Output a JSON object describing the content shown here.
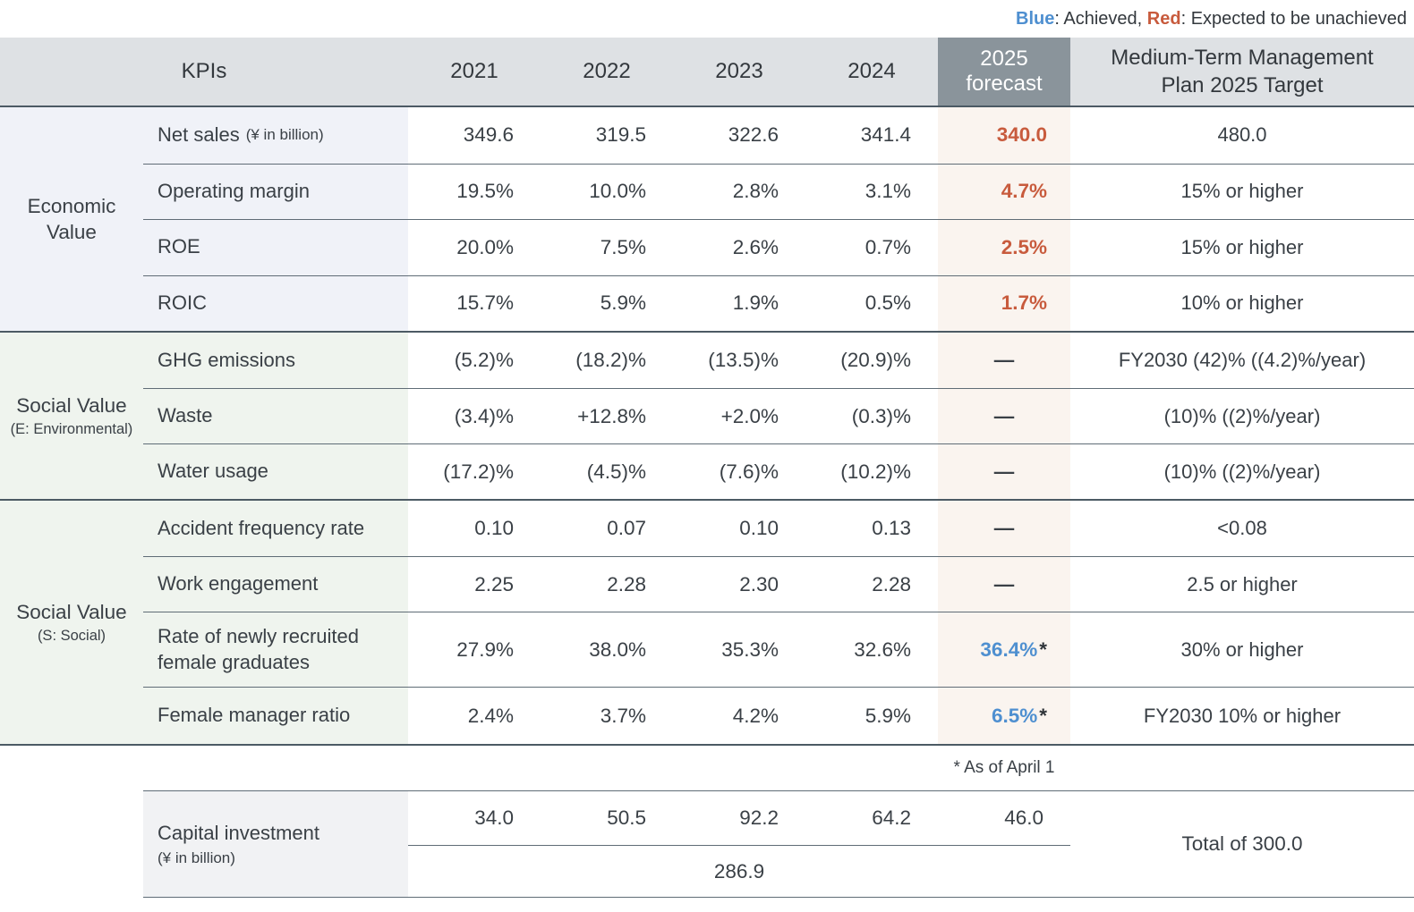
{
  "legend": {
    "blue_label": "Blue",
    "blue_text": ": Achieved, ",
    "red_label": "Red",
    "red_text": ": Expected to be unachieved"
  },
  "header": {
    "kpis": "KPIs",
    "years": [
      "2021",
      "2022",
      "2023",
      "2024"
    ],
    "forecast_line1": "2025",
    "forecast_line2": "forecast",
    "target": "Medium-Term Management Plan 2025 Target"
  },
  "colors": {
    "achieved_blue": "#4e8fd0",
    "unachieved_red": "#c85b3d",
    "header_bg": "#dee1e4",
    "forecast_header_bg": "#8a949b",
    "forecast_column_bg": "#faf4ef",
    "economic_bg": "#f0f2f8",
    "social_bg": "#eff4ee",
    "capital_label_bg": "#f1f2f4"
  },
  "sections": {
    "economic": {
      "category": "Economic Value",
      "rows": [
        {
          "label": "Net sales",
          "label_suffix": "(¥ in billion)",
          "values": [
            "349.6",
            "319.5",
            "322.6",
            "341.4"
          ],
          "forecast": "340.0",
          "target": "480.0"
        },
        {
          "label": "Operating margin",
          "values": [
            "19.5%",
            "10.0%",
            "2.8%",
            "3.1%"
          ],
          "forecast": "4.7%",
          "target": "15% or higher"
        },
        {
          "label": "ROE",
          "values": [
            "20.0%",
            "7.5%",
            "2.6%",
            "0.7%"
          ],
          "forecast": "2.5%",
          "target": "15% or higher"
        },
        {
          "label": "ROIC",
          "values": [
            "15.7%",
            "5.9%",
            "1.9%",
            "0.5%"
          ],
          "forecast": "1.7%",
          "target": "10% or higher"
        }
      ]
    },
    "environmental": {
      "category": "Social Value",
      "category_sub": "(E: Environmental)",
      "rows": [
        {
          "label": "GHG emissions",
          "values": [
            "(5.2)%",
            "(18.2)%",
            "(13.5)%",
            "(20.9)%"
          ],
          "forecast": "—",
          "target": "FY2030 (42)% ((4.2)%/year)"
        },
        {
          "label": "Waste",
          "values": [
            "(3.4)%",
            "+12.8%",
            "+2.0%",
            "(0.3)%"
          ],
          "forecast": "—",
          "target": "(10)% ((2)%/year)"
        },
        {
          "label": "Water usage",
          "values": [
            "(17.2)%",
            "(4.5)%",
            "(7.6)%",
            "(10.2)%"
          ],
          "forecast": "—",
          "target": "(10)% ((2)%/year)"
        }
      ]
    },
    "social": {
      "category": "Social Value",
      "category_sub": "(S: Social)",
      "rows": [
        {
          "label": "Accident frequency rate",
          "values": [
            "0.10",
            "0.07",
            "0.10",
            "0.13"
          ],
          "forecast": "—",
          "target": "<0.08"
        },
        {
          "label": "Work engagement",
          "values": [
            "2.25",
            "2.28",
            "2.30",
            "2.28"
          ],
          "forecast": "—",
          "target": "2.5 or higher"
        },
        {
          "label": "Rate of newly recruited female graduates",
          "values": [
            "27.9%",
            "38.0%",
            "35.3%",
            "32.6%"
          ],
          "forecast": "36.4%",
          "forecast_note": "*",
          "target": "30% or higher"
        },
        {
          "label": "Female manager ratio",
          "values": [
            "2.4%",
            "3.7%",
            "4.2%",
            "5.9%"
          ],
          "forecast": "6.5%",
          "forecast_note": "*",
          "target": "FY2030 10% or higher"
        }
      ]
    }
  },
  "footnote": "* As of April 1",
  "capital": {
    "label": "Capital investment",
    "label_suffix": "(¥ in billion)",
    "values": [
      "34.0",
      "50.5",
      "92.2",
      "64.2",
      "46.0"
    ],
    "subtotal": "286.9",
    "target": "Total of 300.0"
  }
}
